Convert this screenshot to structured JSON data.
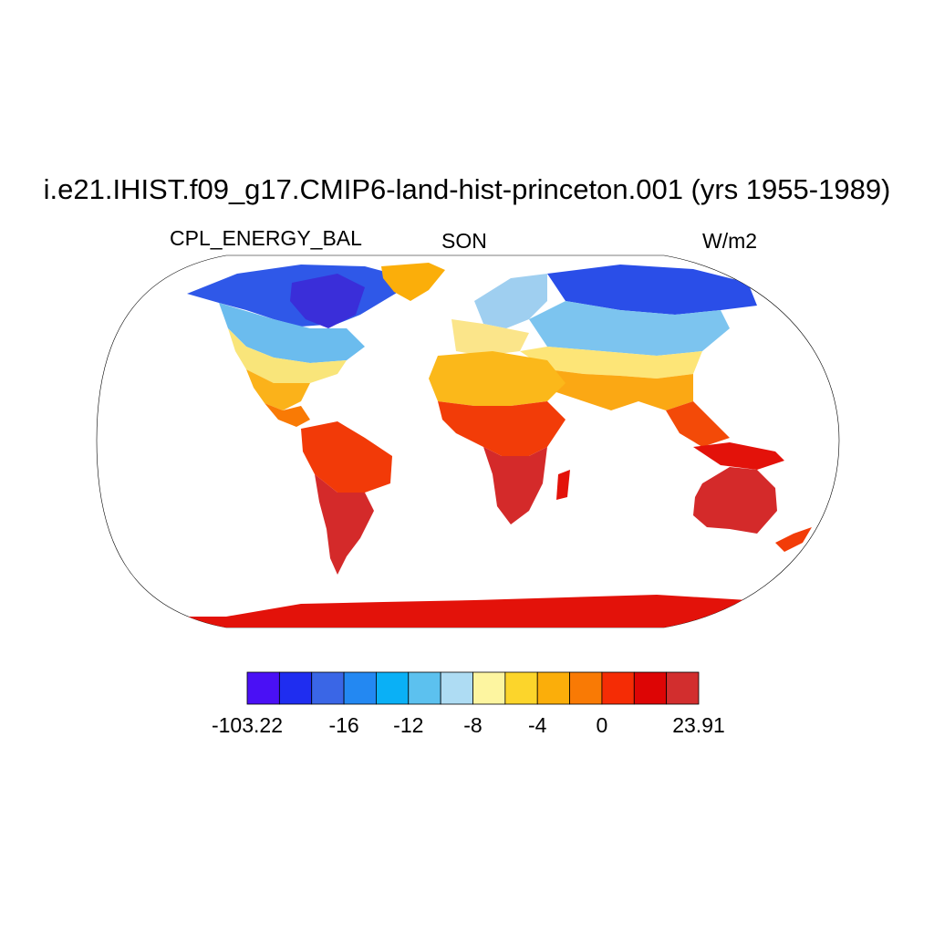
{
  "title": "i.e21.IHIST.f09_g17.CMIP6-land-hist-princeton.001 (yrs 1955-1989)",
  "variable": "CPL_ENERGY_BAL",
  "season": "SON",
  "units": "W/m2",
  "projection": "Robinson",
  "colorbar": {
    "colors": [
      "#4a10f5",
      "#1f2df0",
      "#3a66e6",
      "#2388f2",
      "#0ab0f6",
      "#5cc1ef",
      "#aedcf3",
      "#fdf5a0",
      "#fcd52b",
      "#fbae0a",
      "#f97a05",
      "#f52c05",
      "#dd0505",
      "#d22e2e"
    ],
    "labels": [
      "-103.22",
      "-16",
      "-12",
      "-8",
      "-4",
      "0",
      "23.91"
    ]
  }
}
